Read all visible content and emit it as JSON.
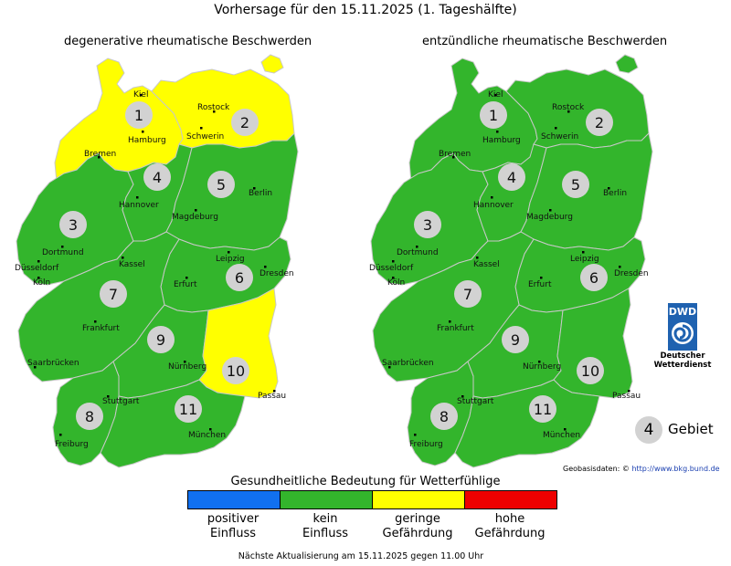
{
  "title": "Vorhersage für den 15.11.2025 (1. Tageshälfte)",
  "maps": {
    "left": {
      "subtitle": "degenerative rheumatische Beschwerden",
      "region_levels": {
        "1": "yellow",
        "2": "yellow",
        "3": "green",
        "4": "green",
        "5": "green",
        "6": "green",
        "7": "green",
        "8": "green",
        "9": "green",
        "10": "yellow",
        "11": "green"
      }
    },
    "right": {
      "subtitle": "entzündliche rheumatische Beschwerden",
      "region_levels": {
        "1": "green",
        "2": "green",
        "3": "green",
        "4": "green",
        "5": "green",
        "6": "green",
        "7": "green",
        "8": "green",
        "9": "green",
        "10": "green",
        "11": "green"
      }
    }
  },
  "cities": [
    "Kiel",
    "Rostock",
    "Hamburg",
    "Schwerin",
    "Bremen",
    "Hannover",
    "Berlin",
    "Magdeburg",
    "Dortmund",
    "Düsseldorf",
    "Köln",
    "Kassel",
    "Leipzig",
    "Dresden",
    "Erfurt",
    "Frankfurt",
    "Saarbrücken",
    "Nürnberg",
    "Passau",
    "Stuttgart",
    "München",
    "Freiburg"
  ],
  "regions": [
    "1",
    "2",
    "3",
    "4",
    "5",
    "6",
    "7",
    "8",
    "9",
    "10",
    "11"
  ],
  "legend": {
    "title": "Gesundheitliche Bedeutung für Wetterfühlige",
    "items": [
      {
        "line1": "positiver",
        "line2": "Einfluss",
        "color": "#1170f0"
      },
      {
        "line1": "kein",
        "line2": "Einfluss",
        "color": "#33b52c"
      },
      {
        "line1": "geringe",
        "line2": "Gefährdung",
        "color": "#ffff00"
      },
      {
        "line1": "hohe",
        "line2": "Gefährdung",
        "color": "#ee0000"
      }
    ]
  },
  "colors": {
    "green": "#33b52c",
    "yellow": "#ffff00",
    "border": "#c8c8c8"
  },
  "dwd": {
    "abbr": "DWD",
    "line1": "Deutscher",
    "line2": "Wetterdienst"
  },
  "gebiet": {
    "number": "4",
    "label": "Gebiet"
  },
  "geodata": {
    "label": "Geobasisdaten: ©",
    "link": "http://www.bkg.bund.de"
  },
  "update": "Nächste Aktualisierung am 15.11.2025 gegen 11.00 Uhr"
}
